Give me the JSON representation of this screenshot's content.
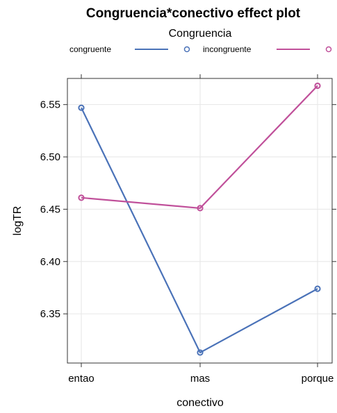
{
  "chart_data": {
    "type": "line",
    "title": "Congruencia*conectivo effect plot",
    "legend_title": "Congruencia",
    "legend_position": "top",
    "xlabel": "conectivo",
    "ylabel": "logTR",
    "categories": [
      "entao",
      "mas",
      "porque"
    ],
    "y_ticks": [
      "6.35",
      "6.40",
      "6.45",
      "6.50",
      "6.55"
    ],
    "ylim": [
      6.303,
      6.575
    ],
    "grid": true,
    "series": [
      {
        "name": "congruente",
        "color": "#4a72b8",
        "values": [
          6.547,
          6.313,
          6.374
        ]
      },
      {
        "name": "incongruente",
        "color": "#c0509a",
        "values": [
          6.461,
          6.451,
          6.568
        ]
      }
    ]
  }
}
